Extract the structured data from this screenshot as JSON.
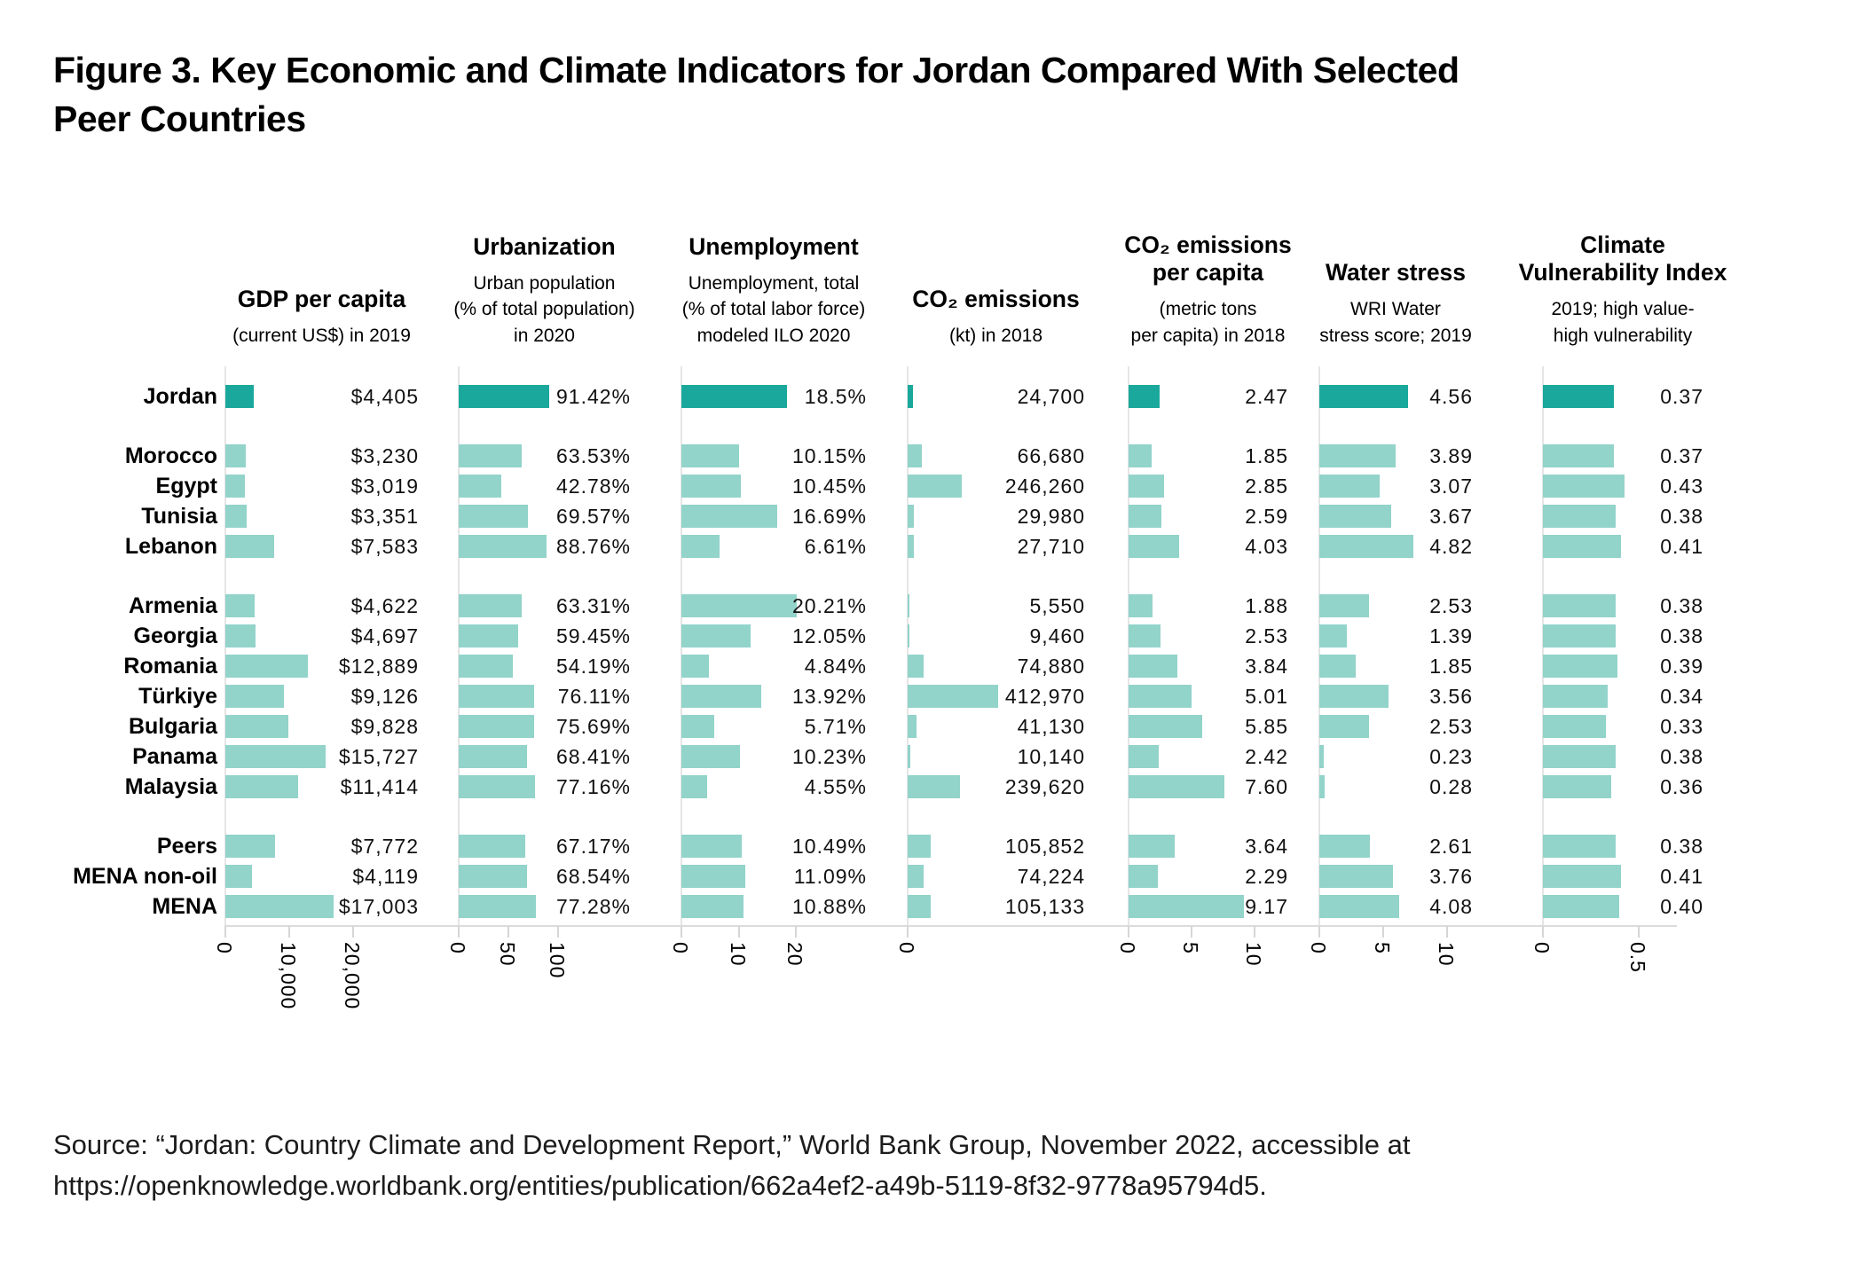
{
  "figure": {
    "title_line1": "Figure 3. Key Economic and Climate Indicators for Jordan Compared With Selected",
    "title_line2": "Peer Countries",
    "source_line1": "Source: “Jordan: Country Climate and Development Report,” World Bank Group, November 2022, accessible at",
    "source_line2": "https://openknowledge.worldbank.org/entities/publication/662a4ef2-a49b-5119-8f32-9778a95794d5."
  },
  "colors": {
    "highlight_bar": "#1BA89C",
    "peer_bar": "#92D3CA",
    "axis_line": "#DCDCDC",
    "zero_line": "#E5E5E5",
    "text": "#000000"
  },
  "countries": [
    "Jordan",
    "Morocco",
    "Egypt",
    "Tunisia",
    "Lebanon",
    "Armenia",
    "Georgia",
    "Romania",
    "Türkiye",
    "Bulgaria",
    "Panama",
    "Malaysia",
    "Peers",
    "MENA non-oil",
    "MENA"
  ],
  "highlight_country": "Jordan",
  "group_gaps_after": [
    0,
    4,
    11
  ],
  "chart_data": [
    {
      "type": "bar",
      "title_lines": [
        "GDP per capita"
      ],
      "subtitle_lines": [
        "(current US$) in 2019"
      ],
      "values": [
        4405,
        3230,
        3019,
        3351,
        7583,
        4622,
        4697,
        12889,
        9126,
        9828,
        15727,
        11414,
        7772,
        4119,
        17003
      ],
      "value_labels": [
        "$4,405",
        "$3,230",
        "$3,019",
        "$3,351",
        "$7,583",
        "$4,622",
        "$4,697",
        "$12,889",
        "$9,126",
        "$9,828",
        "$15,727",
        "$11,414",
        "$7,772",
        "$4,119",
        "$17,003"
      ],
      "ticks": [
        {
          "value": 0,
          "label": "0"
        },
        {
          "value": 10000,
          "label": "10,000"
        },
        {
          "value": 20000,
          "label": "20,000"
        }
      ],
      "xlim": [
        0,
        30000
      ]
    },
    {
      "type": "bar",
      "title_lines": [
        "Urbanization"
      ],
      "subtitle_lines": [
        "Urban population",
        "(% of total population)",
        "in 2020"
      ],
      "values": [
        91.42,
        63.53,
        42.78,
        69.57,
        88.76,
        63.31,
        59.45,
        54.19,
        76.11,
        75.69,
        68.41,
        77.16,
        67.17,
        68.54,
        77.28
      ],
      "value_labels": [
        "91.42%",
        "63.53%",
        "42.78%",
        "69.57%",
        "88.76%",
        "63.31%",
        "59.45%",
        "54.19%",
        "76.11%",
        "75.69%",
        "68.41%",
        "77.16%",
        "67.17%",
        "68.54%",
        "77.28%"
      ],
      "ticks": [
        {
          "value": 0,
          "label": "0"
        },
        {
          "value": 50,
          "label": "50"
        },
        {
          "value": 100,
          "label": "100"
        }
      ],
      "xlim": [
        0,
        170
      ]
    },
    {
      "type": "bar",
      "title_lines": [
        "Unemployment"
      ],
      "subtitle_lines": [
        "Unemployment, total",
        "(% of total labor force)",
        "modeled ILO 2020"
      ],
      "values": [
        18.5,
        10.15,
        10.45,
        16.69,
        6.61,
        20.21,
        12.05,
        4.84,
        13.92,
        5.71,
        10.23,
        4.55,
        10.49,
        11.09,
        10.88
      ],
      "value_labels": [
        "18.5%",
        "10.15%",
        "10.45%",
        "16.69%",
        "6.61%",
        "20.21%",
        "12.05%",
        "4.84%",
        "13.92%",
        "5.71%",
        "10.23%",
        "4.55%",
        "10.49%",
        "11.09%",
        "10.88%"
      ],
      "ticks": [
        {
          "value": 0,
          "label": "0"
        },
        {
          "value": 10,
          "label": "10"
        },
        {
          "value": 20,
          "label": "20"
        }
      ],
      "xlim": [
        0,
        32
      ]
    },
    {
      "type": "bar",
      "title_lines": [
        "CO₂ emissions"
      ],
      "subtitle_lines": [
        "(kt) in 2018"
      ],
      "values": [
        24700,
        66680,
        246260,
        29980,
        27710,
        5550,
        9460,
        74880,
        412970,
        41130,
        10140,
        239620,
        105852,
        74224,
        105133
      ],
      "value_labels": [
        "24,700",
        "66,680",
        "246,260",
        "29,980",
        "27,710",
        "5,550",
        "9,460",
        "74,880",
        "412,970",
        "41,130",
        "10,140",
        "239,620",
        "105,852",
        "74,224",
        "105,133"
      ],
      "ticks": [
        {
          "value": 0,
          "label": "0"
        }
      ],
      "xlim": [
        0,
        820000
      ]
    },
    {
      "type": "bar",
      "title_lines": [
        "CO₂ emissions",
        "per capita"
      ],
      "subtitle_lines": [
        "(metric tons",
        "per capita) in 2018"
      ],
      "values": [
        2.47,
        1.85,
        2.85,
        2.59,
        4.03,
        1.88,
        2.53,
        3.84,
        5.01,
        5.85,
        2.42,
        7.6,
        3.64,
        2.29,
        9.17
      ],
      "value_labels": [
        "2.47",
        "1.85",
        "2.85",
        "2.59",
        "4.03",
        "1.88",
        "2.53",
        "3.84",
        "5.01",
        "5.85",
        "2.42",
        "7.60",
        "3.64",
        "2.29",
        "9.17"
      ],
      "ticks": [
        {
          "value": 0,
          "label": "0"
        },
        {
          "value": 5,
          "label": "5"
        },
        {
          "value": 10,
          "label": "10"
        }
      ],
      "xlim": [
        0,
        12.7
      ]
    },
    {
      "type": "bar",
      "title_lines": [
        "Water stress"
      ],
      "subtitle_lines": [
        "WRI Water",
        "stress score; 2019"
      ],
      "values": [
        4.56,
        3.89,
        3.07,
        3.67,
        4.82,
        2.53,
        1.39,
        1.85,
        3.56,
        2.53,
        0.23,
        0.28,
        2.61,
        3.76,
        4.08
      ],
      "value_labels": [
        "4.56",
        "3.89",
        "3.07",
        "3.67",
        "4.82",
        "2.53",
        "1.39",
        "1.85",
        "3.56",
        "2.53",
        "0.23",
        "0.28",
        "2.61",
        "3.76",
        "4.08"
      ],
      "ticks": [
        {
          "value": 0,
          "label": "0"
        },
        {
          "value": 5,
          "label": "5"
        },
        {
          "value": 10,
          "label": "10"
        }
      ],
      "xlim": [
        0,
        12
      ]
    },
    {
      "type": "bar",
      "title_lines": [
        "Climate",
        "Vulnerability Index"
      ],
      "subtitle_lines": [
        "2019; high value-",
        "high vulnerability"
      ],
      "values": [
        0.37,
        0.37,
        0.43,
        0.38,
        0.41,
        0.38,
        0.38,
        0.39,
        0.34,
        0.33,
        0.38,
        0.36,
        0.38,
        0.41,
        0.4
      ],
      "value_labels": [
        "0.37",
        "0.37",
        "0.43",
        "0.38",
        "0.41",
        "0.38",
        "0.38",
        "0.39",
        "0.34",
        "0.33",
        "0.38",
        "0.36",
        "0.38",
        "0.41",
        "0.40"
      ],
      "ticks": [
        {
          "value": 0,
          "label": "0"
        },
        {
          "value": 0.5,
          "label": "0.5"
        }
      ],
      "xlim": [
        0,
        0.85
      ]
    }
  ]
}
